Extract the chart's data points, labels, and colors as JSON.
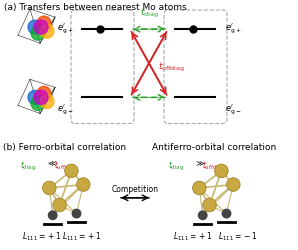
{
  "title_a": "(a) Transfers between nearest Mo atoms",
  "title_b": "(b) Ferro-orbital correlation",
  "title_b2": "Antiferro-orbital correlation",
  "green_color": "#2ca02c",
  "red_color": "#d62728",
  "box_color": "#aaaaaa",
  "gold_color": "#c8a840",
  "gold_edge": "#9a7a20",
  "bond_color": "#c8b870",
  "dark_color": "#444444"
}
